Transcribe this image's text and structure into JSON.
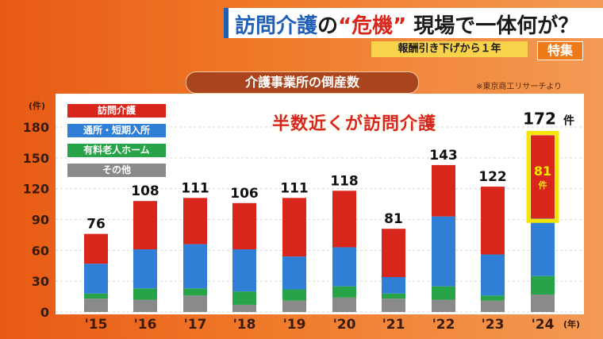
{
  "header": {
    "title_part1": "訪問介護",
    "title_part2": "の",
    "title_part3": "“危機”",
    "title_part4": "現場で一体何が？",
    "subtitle": "報酬引き下げから１年",
    "badge": "特集"
  },
  "chart_title": "介護事業所の倒産数",
  "source": "※東京商工リサーチより",
  "callout": "半数近くが訪問介護",
  "colors": {
    "visit_care": "#d9261c",
    "daycare": "#2f7fd6",
    "nursing_home": "#27a348",
    "other": "#8a8a8a",
    "highlight": "#f5e600"
  },
  "chart_data": {
    "type": "bar",
    "stacked": true,
    "categories": [
      "'15",
      "'16",
      "'17",
      "'18",
      "'19",
      "'20",
      "'21",
      "'22",
      "'23",
      "'24"
    ],
    "series": [
      {
        "name": "その他",
        "values": [
          13,
          12,
          16,
          7,
          11,
          14,
          13,
          12,
          11,
          17
        ]
      },
      {
        "name": "有料老人ホーム",
        "values": [
          5,
          11,
          7,
          13,
          11,
          11,
          5,
          13,
          5,
          18
        ]
      },
      {
        "name": "通所・短期入所",
        "values": [
          29,
          38,
          43,
          41,
          32,
          38,
          16,
          68,
          40,
          56
        ]
      },
      {
        "name": "訪問介護",
        "values": [
          29,
          47,
          45,
          45,
          57,
          55,
          47,
          50,
          66,
          81
        ]
      }
    ],
    "totals": [
      76,
      108,
      111,
      106,
      111,
      118,
      81,
      143,
      122,
      172
    ],
    "total_labels": [
      "76",
      "108",
      "111",
      "106",
      "111",
      "118",
      "81",
      "143",
      "122",
      "172"
    ],
    "highlight_label": "81",
    "highlight_unit": "件",
    "total_unit": "件",
    "y_unit_label": "(件)",
    "x_unit_label": "(年)",
    "yticks": [
      "0",
      "30",
      "60",
      "90",
      "120",
      "150",
      "180"
    ],
    "ylim": [
      0,
      180
    ],
    "legend": [
      "訪問介護",
      "通所・短期入所",
      "有料老人ホーム",
      "その他"
    ],
    "grid": true
  }
}
